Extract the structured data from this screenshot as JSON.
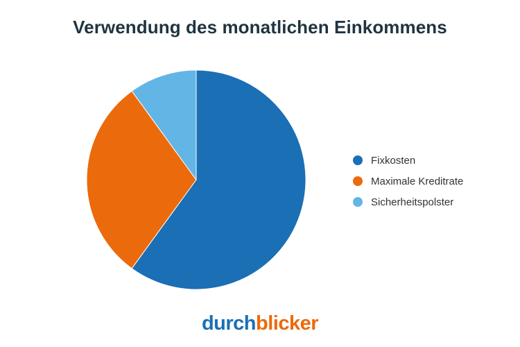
{
  "chart_data": {
    "type": "pie",
    "title": "Verwendung des monatlichen Einkommens",
    "legend_position": "right",
    "categories": [
      "Fixkosten",
      "Maximale Kreditrate",
      "Sicherheitspolster"
    ],
    "values": [
      60,
      30,
      10
    ],
    "colors": [
      "#1a6fb5",
      "#eb6a0c",
      "#62b5e5"
    ]
  },
  "logo": {
    "part1": "durch",
    "part2": "blicker"
  }
}
